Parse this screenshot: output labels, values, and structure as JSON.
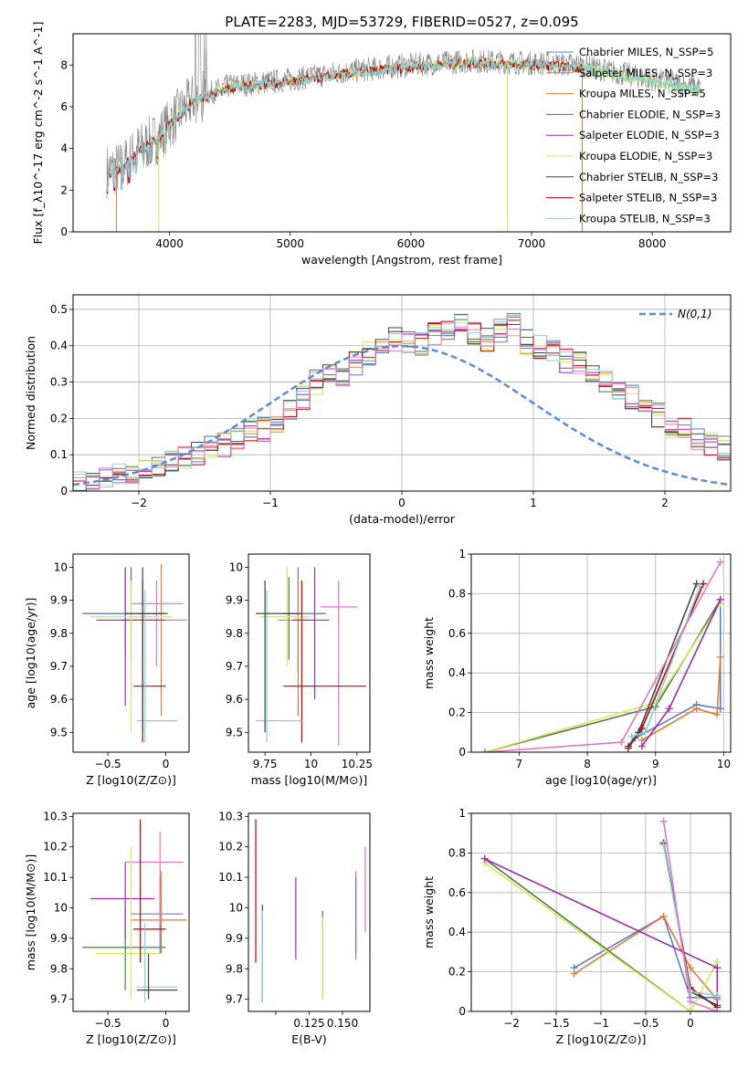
{
  "figure_title": "PLATE=2283, MJD=53729, FIBERID=0527, z=0.095",
  "colors": {
    "chabrier_miles": "#5b7fc4",
    "salpeter_miles": "#e07b39",
    "kroupa_miles": "#e07b39",
    "chabrier_elodie": "#4c7a4c",
    "salpeter_elodie": "#9a2fb0",
    "kroupa_elodie": "#d4e85a",
    "chabrier_stelib": "#444444",
    "salpeter_stelib": "#c00000",
    "kroupa_stelib": "#86d0d8",
    "pink": "#e377c2",
    "data": "#808080",
    "normal": "#5b8bd4"
  },
  "chart_data": [
    {
      "id": "spectrum",
      "type": "line",
      "xlabel": "wavelength [Angstrom, rest frame]",
      "ylabel": "Flux [f_λ10^-17 erg cm^-2 s^-1 A^-1]",
      "xlim": [
        3200,
        8650
      ],
      "ylim": [
        0,
        9.5
      ],
      "xticks": [
        4000,
        5000,
        6000,
        7000,
        8000
      ],
      "yticks": [
        0,
        2,
        4,
        6,
        8
      ],
      "legend_position": "right",
      "legend": [
        "Chabrier MILES, N_SSP=5",
        "Salpeter MILES, N_SSP=3",
        "Kroupa MILES, N_SSP=5",
        "Chabrier ELODIE, N_SSP=3",
        "Salpeter ELODIE, N_SSP=3",
        "Kroupa ELODIE, N_SSP=3",
        "Chabrier STELIB, N_SSP=3",
        "Salpeter STELIB, N_SSP=3",
        "Kroupa STELIB, N_SSP=3"
      ],
      "continuum": {
        "x": [
          3480,
          3600,
          3750,
          3900,
          4000,
          4200,
          4500,
          5000,
          5500,
          6000,
          6500,
          7000,
          7400,
          8000,
          8400
        ],
        "y": [
          2.9,
          3.1,
          4.0,
          4.5,
          5.2,
          6.4,
          7.0,
          7.3,
          7.7,
          8.0,
          8.2,
          8.1,
          8.0,
          7.3,
          6.9
        ]
      }
    },
    {
      "id": "residuals",
      "type": "histogram",
      "xlabel": "(data-model)/error",
      "ylabel": "Normed distribution",
      "xlim": [
        -2.5,
        2.5
      ],
      "ylim": [
        0,
        0.54
      ],
      "xticks": [
        -2,
        -1,
        0,
        1,
        2
      ],
      "yticks": [
        0.0,
        0.1,
        0.2,
        0.3,
        0.4,
        0.5
      ],
      "grid": true,
      "legend_position": "top-right",
      "reference_label": "N(0,1)",
      "bin_width": 0.1,
      "bin_start": -2.5,
      "base_values": [
        0.02,
        0.025,
        0.03,
        0.04,
        0.04,
        0.05,
        0.06,
        0.08,
        0.09,
        0.1,
        0.12,
        0.13,
        0.15,
        0.17,
        0.17,
        0.19,
        0.22,
        0.26,
        0.3,
        0.33,
        0.32,
        0.35,
        0.38,
        0.39,
        0.42,
        0.41,
        0.4,
        0.43,
        0.45,
        0.46,
        0.43,
        0.42,
        0.44,
        0.46,
        0.41,
        0.4,
        0.38,
        0.36,
        0.35,
        0.33,
        0.3,
        0.27,
        0.26,
        0.24,
        0.21,
        0.18,
        0.17,
        0.15,
        0.13,
        0.12,
        0.1,
        0.09,
        0.07,
        0.06,
        0.05,
        0.04,
        0.035,
        0.025,
        0.02,
        0.02
      ]
    },
    {
      "id": "age_vs_Z",
      "type": "errorbar",
      "xlabel": "Z [log10(Z/Z⊙)]",
      "ylabel": "age [log10(age/yr)]",
      "xlim": [
        -0.8,
        0.2
      ],
      "ylim": [
        9.44,
        10.04
      ],
      "xticks": [
        -0.5,
        0.0
      ],
      "yticks": [
        9.5,
        9.6,
        9.7,
        9.8,
        9.9,
        10.0
      ],
      "points": [
        {
          "x": -0.3,
          "y": 9.86,
          "xl": -0.72,
          "xh": 0.02,
          "yl": 9.72,
          "yh": 10.0,
          "c": "chabrier_elodie"
        },
        {
          "x": -0.35,
          "y": 9.86,
          "xl": -0.68,
          "xh": -0.02,
          "yl": 9.73,
          "yh": 10.0,
          "c": "chabrier_miles"
        },
        {
          "x": -0.04,
          "y": 9.84,
          "xl": -0.4,
          "xh": 0.18,
          "yl": 9.55,
          "yh": 10.01,
          "c": "salpeter_miles"
        },
        {
          "x": -0.08,
          "y": 9.89,
          "xl": -0.3,
          "xh": 0.15,
          "yl": 9.7,
          "yh": 9.96,
          "c": "pink"
        },
        {
          "x": -0.35,
          "y": 9.84,
          "xl": -0.6,
          "xh": 0.0,
          "yl": 9.58,
          "yh": 10.0,
          "c": "salpeter_elodie"
        },
        {
          "x": -0.3,
          "y": 9.85,
          "xl": -0.65,
          "xh": 0.05,
          "yl": 9.5,
          "yh": 9.96,
          "c": "kroupa_elodie"
        },
        {
          "x": -0.2,
          "y": 9.64,
          "xl": -0.28,
          "xh": 0.0,
          "yl": 9.47,
          "yh": 9.96,
          "c": "salpeter_stelib"
        },
        {
          "x": -0.18,
          "y": 9.535,
          "xl": -0.25,
          "xh": 0.1,
          "yl": 9.47,
          "yh": 9.93,
          "c": "kroupa_stelib"
        },
        {
          "x": -0.2,
          "y": 9.86,
          "xl": -0.35,
          "xh": 0.0,
          "yl": 9.5,
          "yh": 10.0,
          "c": "chabrier_stelib"
        }
      ]
    },
    {
      "id": "age_vs_mass",
      "type": "errorbar",
      "xlabel": "mass [log10(M/M⊙)]",
      "ylabel": "",
      "xlim": [
        9.66,
        10.32
      ],
      "ylim": [
        9.44,
        10.04
      ],
      "xticks": [
        9.75,
        10.0,
        10.25
      ],
      "yticks": [
        9.5,
        9.6,
        9.7,
        9.8,
        9.9,
        10.0
      ],
      "points": [
        {
          "x": 9.88,
          "y": 9.86,
          "xl": 9.85,
          "xh": 10.08,
          "yl": 9.72,
          "yh": 9.97,
          "c": "chabrier_elodie"
        },
        {
          "x": 9.93,
          "y": 9.86,
          "xl": 9.85,
          "xh": 10.05,
          "yl": 9.68,
          "yh": 10.0,
          "c": "chabrier_miles"
        },
        {
          "x": 9.93,
          "y": 9.84,
          "xl": 9.82,
          "xh": 10.02,
          "yl": 9.55,
          "yh": 9.96,
          "c": "salpeter_miles"
        },
        {
          "x": 10.15,
          "y": 9.88,
          "xl": 10.05,
          "xh": 10.25,
          "yl": 9.46,
          "yh": 9.96,
          "c": "pink"
        },
        {
          "x": 10.02,
          "y": 9.84,
          "xl": 9.9,
          "xh": 10.1,
          "yl": 9.6,
          "yh": 10.0,
          "c": "salpeter_elodie"
        },
        {
          "x": 9.87,
          "y": 9.85,
          "xl": 9.72,
          "xh": 10.0,
          "yl": 9.7,
          "yh": 10.0,
          "c": "kroupa_elodie"
        },
        {
          "x": 9.95,
          "y": 9.64,
          "xl": 9.85,
          "xh": 10.3,
          "yl": 9.47,
          "yh": 9.96,
          "c": "salpeter_stelib"
        },
        {
          "x": 9.76,
          "y": 9.535,
          "xl": 9.7,
          "xh": 9.95,
          "yl": 9.47,
          "yh": 9.93,
          "c": "kroupa_stelib"
        },
        {
          "x": 9.75,
          "y": 9.86,
          "xl": 9.7,
          "xh": 9.95,
          "yl": 9.5,
          "yh": 9.96,
          "c": "chabrier_stelib"
        }
      ]
    },
    {
      "id": "weight_vs_age",
      "type": "line",
      "xlabel": "age [log10(age/yr)]",
      "ylabel": "mass weight",
      "xlim": [
        6.3,
        10.1
      ],
      "ylim": [
        0,
        1.0
      ],
      "xticks": [
        7,
        8,
        9,
        10
      ],
      "yticks": [
        0.0,
        0.2,
        0.4,
        0.6,
        0.8,
        1.0
      ],
      "grid": true,
      "series": [
        {
          "c": "chabrier_miles",
          "x": [
            8.7,
            9.6,
            9.95,
            9.95
          ],
          "y": [
            0.07,
            0.24,
            0.22,
            0.77
          ]
        },
        {
          "c": "salpeter_miles",
          "x": [
            8.8,
            9.6,
            9.9,
            9.95
          ],
          "y": [
            0.06,
            0.22,
            0.19,
            0.48
          ]
        },
        {
          "c": "chabrier_elodie",
          "x": [
            6.5,
            9.0,
            9.95
          ],
          "y": [
            0.0,
            0.23,
            0.77
          ]
        },
        {
          "c": "kroupa_elodie",
          "x": [
            6.5,
            9.0,
            9.95
          ],
          "y": [
            0.0,
            0.25,
            0.75
          ]
        },
        {
          "c": "salpeter_elodie",
          "x": [
            8.8,
            9.2,
            9.95
          ],
          "y": [
            0.03,
            0.22,
            0.77
          ]
        },
        {
          "c": "salpeter_stelib",
          "x": [
            8.6,
            8.8,
            9.7
          ],
          "y": [
            0.02,
            0.12,
            0.85
          ]
        },
        {
          "c": "chabrier_stelib",
          "x": [
            8.6,
            8.75,
            9.6
          ],
          "y": [
            0.03,
            0.1,
            0.85
          ]
        },
        {
          "c": "kroupa_stelib",
          "x": [
            8.65,
            8.85,
            9.65
          ],
          "y": [
            0.08,
            0.1,
            0.84
          ]
        },
        {
          "c": "pink",
          "x": [
            6.5,
            8.5,
            9.95
          ],
          "y": [
            0.0,
            0.05,
            0.96
          ]
        }
      ]
    },
    {
      "id": "mass_vs_Z",
      "type": "errorbar",
      "xlabel": "Z [log10(Z/Z⊙)]",
      "ylabel": "mass [log10(M/M⊙)]",
      "xlim": [
        -0.8,
        0.2
      ],
      "ylim": [
        9.66,
        10.31
      ],
      "xticks": [
        -0.5,
        0.0
      ],
      "yticks": [
        9.7,
        9.8,
        9.9,
        10.0,
        10.1,
        10.2,
        10.3
      ],
      "points": [
        {
          "x": -0.35,
          "y": 9.87,
          "xl": -0.72,
          "xh": 0.0,
          "yl": 9.73,
          "yh": 10.0,
          "c": "chabrier_elodie"
        },
        {
          "x": -0.05,
          "y": 9.98,
          "xl": -0.3,
          "xh": 0.15,
          "yl": 9.85,
          "yh": 10.1,
          "c": "chabrier_miles"
        },
        {
          "x": -0.04,
          "y": 9.96,
          "xl": -0.3,
          "xh": 0.18,
          "yl": 9.85,
          "yh": 10.12,
          "c": "salpeter_miles"
        },
        {
          "x": -0.05,
          "y": 10.15,
          "xl": -0.35,
          "xh": 0.15,
          "yl": 9.95,
          "yh": 10.25,
          "c": "pink"
        },
        {
          "x": -0.35,
          "y": 10.03,
          "xl": -0.65,
          "xh": -0.1,
          "yl": 9.9,
          "yh": 10.15,
          "c": "salpeter_elodie"
        },
        {
          "x": -0.3,
          "y": 9.85,
          "xl": -0.6,
          "xh": -0.05,
          "yl": 9.7,
          "yh": 10.2,
          "c": "kroupa_elodie"
        },
        {
          "x": -0.22,
          "y": 9.93,
          "xl": -0.28,
          "xh": 0.0,
          "yl": 9.82,
          "yh": 10.29,
          "c": "salpeter_stelib"
        },
        {
          "x": -0.18,
          "y": 9.74,
          "xl": -0.25,
          "xh": 0.1,
          "yl": 9.69,
          "yh": 9.95,
          "c": "kroupa_stelib"
        },
        {
          "x": -0.15,
          "y": 9.73,
          "xl": -0.25,
          "xh": 0.1,
          "yl": 9.7,
          "yh": 9.85,
          "c": "chabrier_stelib"
        }
      ]
    },
    {
      "id": "mass_vs_ebv",
      "type": "errorbar",
      "xlabel": "E(B-V)",
      "ylabel": "",
      "xlim": [
        0.0795,
        0.1705
      ],
      "ylim": [
        9.66,
        10.31
      ],
      "xticks": [
        0.1,
        0.125,
        0.15
      ],
      "xtick_labels": [
        "",
        "0.125",
        "0.150"
      ],
      "yticks": [
        9.7,
        9.8,
        9.9,
        10.0,
        10.1,
        10.2,
        10.3
      ],
      "points": [
        {
          "x": 0.085,
          "yl": 9.82,
          "yh": 10.29,
          "c": "salpeter_stelib"
        },
        {
          "x": 0.09,
          "yl": 9.69,
          "yh": 10.01,
          "c": "chabrier_stelib"
        },
        {
          "x": 0.09,
          "yl": 9.69,
          "yh": 9.99,
          "c": "kroupa_stelib"
        },
        {
          "x": 0.115,
          "yl": 9.83,
          "yh": 10.1,
          "c": "salpeter_elodie"
        },
        {
          "x": 0.135,
          "yl": 9.7,
          "yh": 9.99,
          "c": "chabrier_elodie"
        },
        {
          "x": 0.135,
          "yl": 9.7,
          "yh": 9.97,
          "c": "kroupa_elodie"
        },
        {
          "x": 0.16,
          "yl": 9.83,
          "yh": 10.12,
          "c": "salpeter_miles"
        },
        {
          "x": 0.16,
          "yl": 9.85,
          "yh": 10.1,
          "c": "chabrier_miles"
        },
        {
          "x": 0.167,
          "yl": 9.92,
          "yh": 10.2,
          "c": "pink"
        }
      ]
    },
    {
      "id": "weight_vs_Z",
      "type": "line",
      "xlabel": "Z [log10(Z/Z⊙)]",
      "ylabel": "mass weight",
      "xlim": [
        -2.45,
        0.45
      ],
      "ylim": [
        0,
        1.0
      ],
      "xticks": [
        -2.0,
        -1.5,
        -1.0,
        -0.5,
        0.0
      ],
      "yticks": [
        0.0,
        0.2,
        0.4,
        0.6,
        0.8,
        1.0
      ],
      "grid": true,
      "series": [
        {
          "c": "chabrier_miles",
          "x": [
            -1.3,
            -0.3,
            0.0,
            0.3,
            0.3
          ],
          "y": [
            0.22,
            0.48,
            0.07,
            0.07,
            0.22
          ]
        },
        {
          "c": "salpeter_miles",
          "x": [
            -1.3,
            -0.3,
            0.0,
            0.3,
            0.3
          ],
          "y": [
            0.19,
            0.48,
            0.22,
            0.06,
            0.22
          ]
        },
        {
          "c": "chabrier_elodie",
          "x": [
            -2.3,
            0.0,
            0.3
          ],
          "y": [
            0.77,
            0.0,
            0.0
          ]
        },
        {
          "c": "kroupa_elodie",
          "x": [
            -2.3,
            0.0,
            0.3
          ],
          "y": [
            0.75,
            0.0,
            0.25
          ]
        },
        {
          "c": "salpeter_elodie",
          "x": [
            -2.3,
            0.3,
            0.3
          ],
          "y": [
            0.77,
            0.22,
            0.03
          ]
        },
        {
          "c": "salpeter_stelib",
          "x": [
            -0.3,
            0.0,
            0.3
          ],
          "y": [
            0.85,
            0.12,
            0.02
          ]
        },
        {
          "c": "chabrier_stelib",
          "x": [
            -0.3,
            0.0,
            0.3
          ],
          "y": [
            0.85,
            0.1,
            0.03
          ]
        },
        {
          "c": "kroupa_stelib",
          "x": [
            -0.3,
            0.0,
            0.3
          ],
          "y": [
            0.84,
            0.1,
            0.08
          ]
        },
        {
          "c": "pink",
          "x": [
            -0.3,
            0.0,
            0.3
          ],
          "y": [
            0.96,
            0.05,
            0.0
          ]
        }
      ]
    }
  ]
}
